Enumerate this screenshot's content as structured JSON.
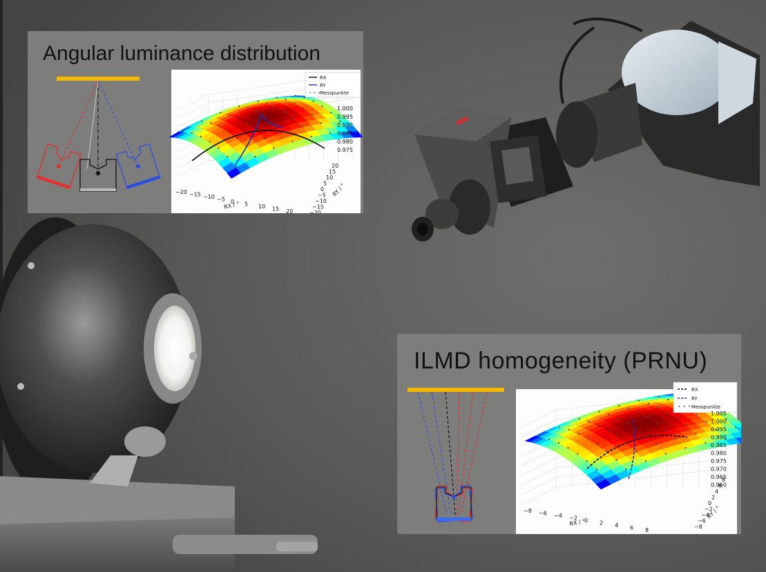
{
  "panels": {
    "angular": {
      "title": "Angular luminance distribution",
      "legend": [
        "RX",
        "RY",
        "Messpunkte"
      ],
      "zticks": [
        "1.000",
        "0.995",
        "0.990",
        "0.985",
        "0.980",
        "0.975"
      ],
      "xticks": [
        "−20",
        "−15",
        "−10",
        "−5",
        "0",
        "5",
        "10",
        "15",
        "20"
      ],
      "yticks": [
        "20",
        "15",
        "10",
        "5",
        "0",
        "−5",
        "−10",
        "−15",
        "−20"
      ],
      "xlabel": "RX / °",
      "ylabel": "RY / °"
    },
    "ilmd": {
      "title": "ILMD homogeneity (PRNU)",
      "legend": [
        "RX",
        "RY",
        "Messpunkte"
      ],
      "zticks": [
        "1.005",
        "1.000",
        "0.995",
        "0.990",
        "0.985",
        "0.980",
        "0.975",
        "0.970",
        "0.965",
        "0.960"
      ],
      "xticks": [
        "−8",
        "−6",
        "−4",
        "−2",
        "0",
        "2",
        "4",
        "6",
        "8"
      ],
      "yticks": [
        "8",
        "6",
        "4",
        "2",
        "0",
        "−2",
        "−4",
        "−6",
        "−8"
      ],
      "xlabel": "RX / °",
      "ylabel": "RY / °"
    }
  },
  "colors": {
    "backdrop": "#595957",
    "panel": "#7d7d7b",
    "source_bar": "#f5b800",
    "rx_line": "#000000",
    "ry_line": "#1a2fb0",
    "red_pose": "#e03030",
    "blue_pose": "#2a4fe0"
  }
}
